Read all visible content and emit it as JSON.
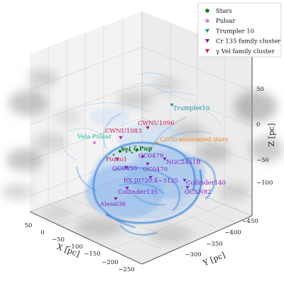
{
  "chart_data": {
    "type": "scatter",
    "projection": "3d",
    "axes": {
      "x": {
        "label": "X [pc]",
        "ticks": [
          "50",
          "0",
          "−50",
          "−100",
          "−150",
          "−200",
          "−250"
        ]
      },
      "y": {
        "label": "Y [pc]",
        "ticks": [
          "−300",
          "−350",
          "−400",
          "−450"
        ]
      },
      "z": {
        "label": "Z [pc]",
        "ticks": [
          "50",
          "0",
          "−50",
          "−100"
        ]
      }
    },
    "legend": {
      "placement": "top-right",
      "entries": [
        {
          "name": "Stars",
          "marker": "circle",
          "color": "#1a7a1a"
        },
        {
          "name": "Pulsar",
          "marker": "circle",
          "color": "#d982d9"
        },
        {
          "name": "Trumpler 10",
          "marker": "triangle-down",
          "color": "#1f9c9c"
        },
        {
          "name": "Cr 135 family cluster",
          "marker": "triangle-down",
          "color": "#8a1fc4"
        },
        {
          "name": "γ Vel family cluster",
          "marker": "triangle-down",
          "color": "#c41f55"
        }
      ]
    },
    "annotations": [
      {
        "text": "Trumpler10",
        "color": "#1f9c9c",
        "group": "Trumpler 10"
      },
      {
        "text": "CWNU1096",
        "color": "#c41f55",
        "group": "γ Vel family cluster"
      },
      {
        "text": "CWNU1083",
        "color": "#c41f55",
        "group": "γ Vel family cluster"
      },
      {
        "text": "Vela Pulsar",
        "color": "#19c9a0",
        "group": "Pulsar"
      },
      {
        "text": "CG30-associated stars",
        "color": "#f08a0a",
        "group": "Stars"
      },
      {
        "text": "Vel",
        "color": "#1a7a1a",
        "group": "Stars"
      },
      {
        "text": "ζ Pup",
        "color": "#1a7a1a",
        "group": "Stars"
      },
      {
        "text": "Pozzo1",
        "color": "#c41f55",
        "group": "γ Vel family cluster"
      },
      {
        "text": "OC0479",
        "color": "#8a1fc4",
        "group": "Cr 135 family cluster"
      },
      {
        "text": "OC0450",
        "color": "#8a1fc4",
        "group": "Cr 135 family cluster"
      },
      {
        "text": "OC0470",
        "color": "#8a1fc4",
        "group": "Cr 135 family cluster"
      },
      {
        "text": "NGC2451B",
        "color": "#8a1fc4",
        "group": "Cr 135 family cluster"
      },
      {
        "text": "RX J0720.4−3125",
        "color": "#8a1fc4",
        "group": "Cr 135 family cluster"
      },
      {
        "text": "Collinder140",
        "color": "#8a1fc4",
        "group": "Cr 135 family cluster"
      },
      {
        "text": "Collinder135",
        "color": "#8a1fc4",
        "group": "Cr 135 family cluster"
      },
      {
        "text": "OCSN82",
        "color": "#8a1fc4",
        "group": "Cr 135 family cluster"
      },
      {
        "text": "Alessi36",
        "color": "#8a1fc4",
        "group": "Cr 135 family cluster"
      }
    ]
  }
}
